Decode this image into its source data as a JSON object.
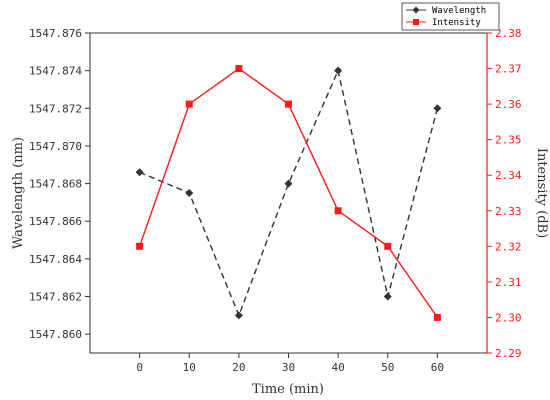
{
  "chart_data": {
    "type": "line",
    "x": [
      0,
      10,
      20,
      30,
      40,
      50,
      60
    ],
    "xlabel": "Time (min)",
    "xlim": [
      -10,
      70
    ],
    "xticks": [
      "0",
      "10",
      "20",
      "30",
      "40",
      "50",
      "60"
    ],
    "series": [
      {
        "name": "Wavelength",
        "axis": "left",
        "values": [
          1547.8686,
          1547.8675,
          1547.861,
          1547.868,
          1547.874,
          1547.862,
          1547.872
        ],
        "color": "#333333",
        "line_style": "dashed",
        "marker": "diamond"
      },
      {
        "name": "Intensity",
        "axis": "right",
        "values": [
          2.32,
          2.36,
          2.37,
          2.36,
          2.33,
          2.32,
          2.3
        ],
        "color": "#ff1a1a",
        "line_style": "solid",
        "marker": "square"
      }
    ],
    "y_left": {
      "label": "Wavelength (nm)",
      "lim": [
        1547.859,
        1547.876
      ],
      "ticks": [
        "1547.860",
        "1547.862",
        "1547.864",
        "1547.866",
        "1547.868",
        "1547.870",
        "1547.872",
        "1547.874",
        "1547.876"
      ],
      "color": "#333333"
    },
    "y_right": {
      "label": "Intensity (dB)",
      "lim": [
        2.29,
        2.38
      ],
      "ticks": [
        "2.29",
        "2.30",
        "2.31",
        "2.32",
        "2.33",
        "2.34",
        "2.35",
        "2.36",
        "2.37",
        "2.38"
      ],
      "color": "#ff1a1a"
    },
    "legend": {
      "placement": "top-right",
      "entries": [
        "Wavelength",
        "Intensity"
      ]
    },
    "grid": false
  }
}
